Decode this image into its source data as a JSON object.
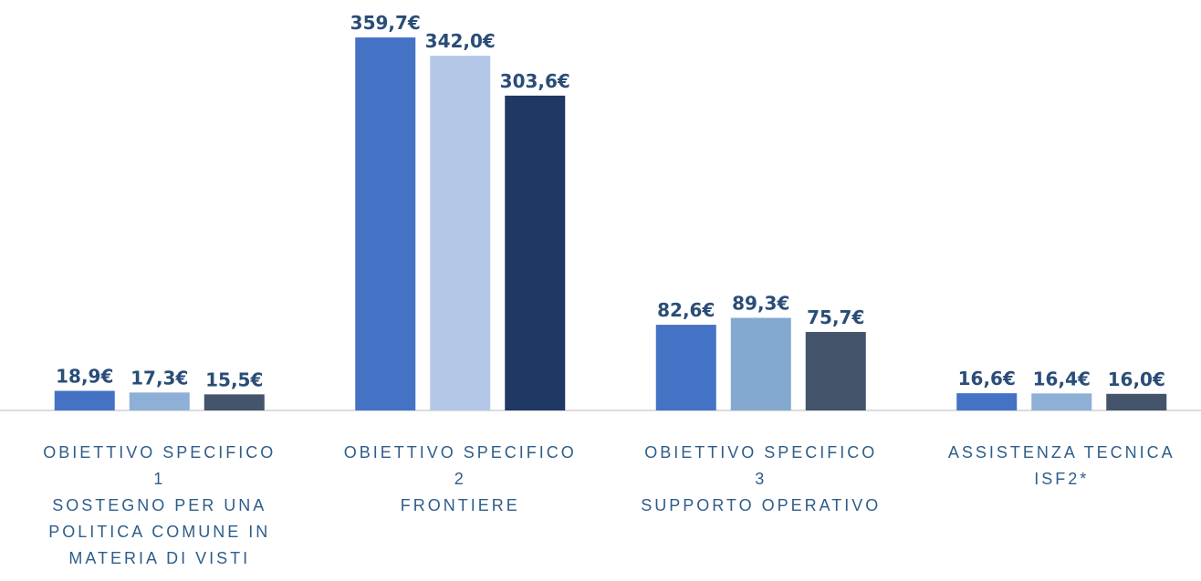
{
  "chart_data": {
    "type": "bar",
    "categories": [
      [
        "OBIETTIVO SPECIFICO",
        "1",
        "SOSTEGNO PER UNA",
        "POLITICA COMUNE IN",
        "MATERIA DI VISTI"
      ],
      [
        "OBIETTIVO SPECIFICO",
        "2",
        "FRONTIERE"
      ],
      [
        "OBIETTIVO SPECIFICO",
        "3",
        "SUPPORTO OPERATIVO"
      ],
      [
        "ASSISTENZA TECNICA",
        "ISF2*"
      ]
    ],
    "series": [
      {
        "colors": [
          "#4472c4",
          "#4472c4",
          "#4472c4",
          "#4472c4"
        ],
        "values": [
          18.9,
          359.7,
          82.6,
          16.6
        ],
        "value_labels": [
          "18,9€",
          "359,7€",
          "82,6€",
          "16,6€"
        ]
      },
      {
        "colors": [
          "#8eb0d6",
          "#b4c7e7",
          "#84a9d0",
          "#8eb0d6"
        ],
        "values": [
          17.3,
          342.0,
          89.3,
          16.4
        ],
        "value_labels": [
          "17,3€",
          "342,0€",
          "89,3€",
          "16,4€"
        ]
      },
      {
        "colors": [
          "#44546a",
          "#203864",
          "#44546a",
          "#44546a"
        ],
        "values": [
          15.5,
          303.6,
          75.7,
          16.0
        ],
        "value_labels": [
          "15,5€",
          "303,6€",
          "75,7€",
          "16,0€"
        ]
      }
    ],
    "ylim": [
      0,
      380
    ]
  }
}
